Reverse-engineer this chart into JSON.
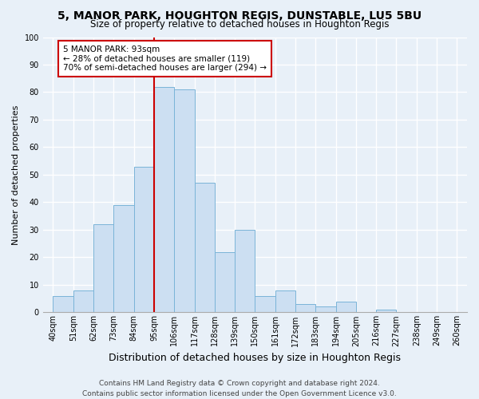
{
  "title": "5, MANOR PARK, HOUGHTON REGIS, DUNSTABLE, LU5 5BU",
  "subtitle": "Size of property relative to detached houses in Houghton Regis",
  "xlabel": "Distribution of detached houses by size in Houghton Regis",
  "ylabel": "Number of detached properties",
  "bar_values": [
    6,
    8,
    32,
    39,
    53,
    82,
    81,
    47,
    22,
    30,
    6,
    8,
    3,
    2,
    4,
    0,
    1
  ],
  "bin_labels": [
    "40sqm",
    "51sqm",
    "62sqm",
    "73sqm",
    "84sqm",
    "95sqm",
    "106sqm",
    "117sqm",
    "128sqm",
    "139sqm",
    "150sqm",
    "161sqm",
    "172sqm",
    "183sqm",
    "194sqm",
    "205sqm",
    "216sqm",
    "227sqm",
    "238sqm",
    "249sqm",
    "260sqm"
  ],
  "bar_color": "#ccdff2",
  "bar_edge_color": "#7ab4d8",
  "vline_color": "#cc0000",
  "annotation_title": "5 MANOR PARK: 93sqm",
  "annotation_line1": "← 28% of detached houses are smaller (119)",
  "annotation_line2": "70% of semi-detached houses are larger (294) →",
  "annotation_box_color": "white",
  "annotation_box_edge": "#cc0000",
  "ylim": [
    0,
    100
  ],
  "footer1": "Contains HM Land Registry data © Crown copyright and database right 2024.",
  "footer2": "Contains public sector information licensed under the Open Government Licence v3.0.",
  "background_color": "#e8f0f8",
  "grid_color": "#ffffff",
  "title_fontsize": 10,
  "subtitle_fontsize": 8.5,
  "xlabel_fontsize": 9,
  "ylabel_fontsize": 8,
  "tick_fontsize": 7,
  "footer_fontsize": 6.5
}
